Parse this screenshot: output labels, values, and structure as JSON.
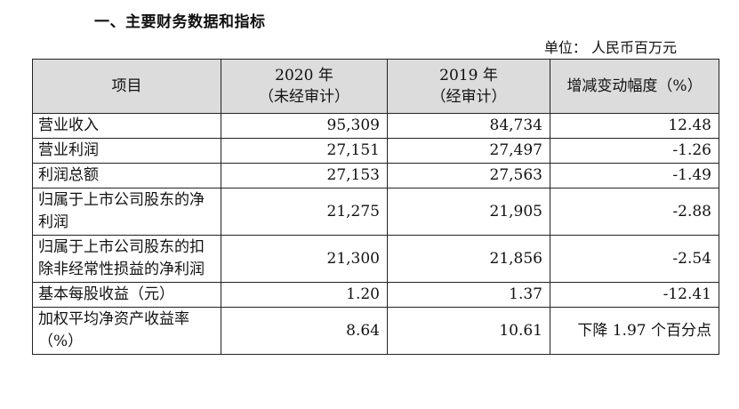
{
  "section_title": "一、主要财务数据和指标",
  "unit_label": "单位：  人民币百万元",
  "table": {
    "headers": {
      "item": "项目",
      "col2020_year": "2020 年",
      "col2020_note": "（未经审计）",
      "col2019_year": "2019 年",
      "col2019_note": "（经审计）",
      "change": "增减变动幅度（%）"
    },
    "rows": [
      {
        "label": "营业收入",
        "v2020": "95,309",
        "v2019": "84,734",
        "change": "12.48"
      },
      {
        "label": "营业利润",
        "v2020": "27,151",
        "v2019": "27,497",
        "change": "-1.26"
      },
      {
        "label": "利润总额",
        "v2020": "27,153",
        "v2019": "27,563",
        "change": "-1.49"
      },
      {
        "label": "归属于上市公司股东的净利润",
        "v2020": "21,275",
        "v2019": "21,905",
        "change": "-2.88"
      },
      {
        "label": "归属于上市公司股东的扣除非经常性损益的净利润",
        "v2020": "21,300",
        "v2019": "21,856",
        "change": "-2.54"
      },
      {
        "label": "基本每股收益（元）",
        "v2020": "1.20",
        "v2019": "1.37",
        "change": "-12.41"
      },
      {
        "label": "加权平均净资产收益率（%）",
        "v2020": "8.64",
        "v2019": "10.61",
        "change": "下降 1.97 个百分点"
      }
    ]
  }
}
